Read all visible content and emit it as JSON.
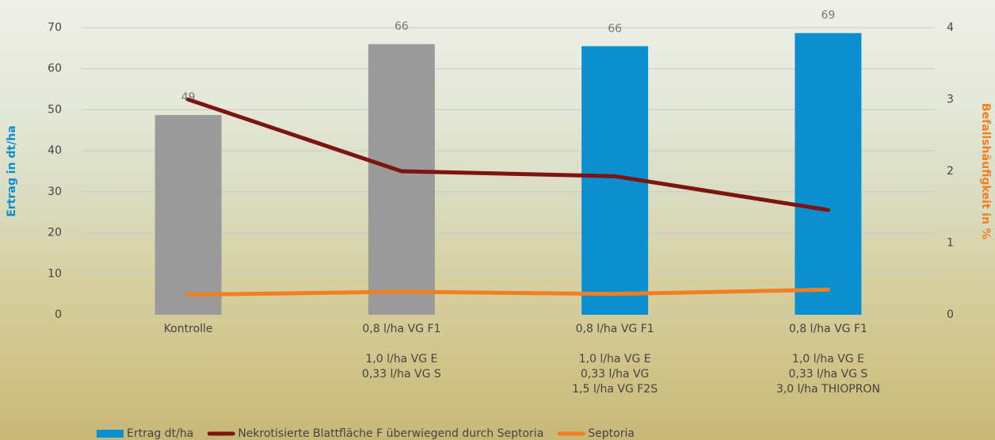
{
  "chart_data": {
    "type": "bar",
    "categories": [
      [
        "Kontrolle"
      ],
      [
        "0,8 l/ha VG F1",
        "1,0 l/ha VG E",
        "0,33 l/ha VG S"
      ],
      [
        "0,8 l/ha VG F1",
        "1,0 l/ha VG E",
        "0,33 l/ha VG",
        "1,5 l/ha VG F2S"
      ],
      [
        "0,8 l/ha VG F1",
        "1,0 l/ha VG E",
        "0,33 l/ha VG S",
        "3,0 l/ha THIOPRON"
      ]
    ],
    "series": [
      {
        "name": "Ertrag dt/ha",
        "type": "bar",
        "color": "#0a8fd0",
        "colors": [
          "#9a9a9a",
          "#9a9a9a",
          "#0a8fd0",
          "#0a8fd0"
        ],
        "values": [
          48.7,
          66,
          65.5,
          68.7
        ],
        "value_labels": [
          "49",
          "66",
          "66",
          "69"
        ]
      },
      {
        "name": "Nekrotisierte Blattfläche F überwiegend durch Septoria",
        "type": "line",
        "color": "#7d1410",
        "axis": "y2",
        "values": [
          3.0,
          2.0,
          1.93,
          1.46
        ]
      },
      {
        "name": "Septoria",
        "type": "line",
        "color": "#f07f24",
        "axis": "y2",
        "values": [
          0.28,
          0.32,
          0.29,
          0.35
        ]
      }
    ],
    "ylabel": "Ertrag in dt/ha",
    "y2label": "Befallshäufigkeit in %",
    "ylabel_color": "#0a8fd0",
    "y2label_color": "#f07f24",
    "ylim": [
      0,
      70
    ],
    "yticks": [
      0,
      10,
      20,
      30,
      40,
      50,
      60,
      70
    ],
    "y2lim": [
      0,
      4
    ],
    "y2ticks": [
      0,
      1,
      2,
      3,
      4
    ],
    "grid": true,
    "legend": "bottom"
  }
}
